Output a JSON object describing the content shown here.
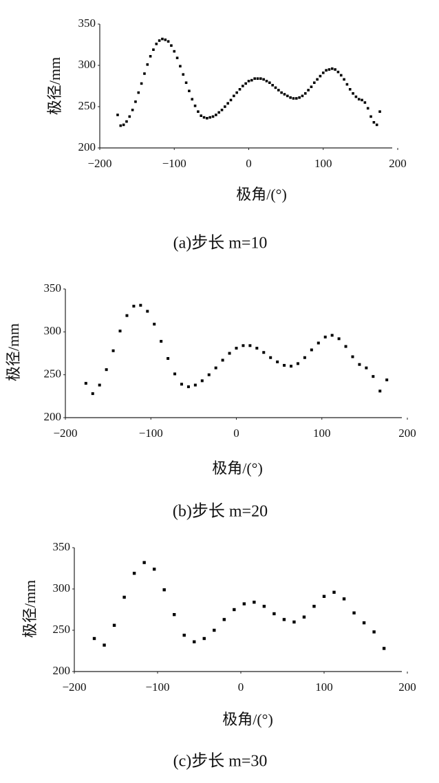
{
  "chart_data": [
    {
      "type": "scatter",
      "title": "(a)步长 m=10",
      "xlabel": "极角/(°)",
      "ylabel": "极径/mm",
      "color": "#000000",
      "xlim": [
        -200,
        200
      ],
      "ylim": [
        200,
        350
      ],
      "xticks": [
        -200,
        -100,
        0,
        100,
        200
      ],
      "yticks": [
        200,
        250,
        300,
        350
      ],
      "x": [
        -176,
        -172,
        -168,
        -164,
        -160,
        -156,
        -152,
        -148,
        -144,
        -140,
        -136,
        -132,
        -128,
        -124,
        -120,
        -116,
        -112,
        -108,
        -104,
        -100,
        -96,
        -92,
        -88,
        -84,
        -80,
        -76,
        -72,
        -68,
        -64,
        -60,
        -56,
        -52,
        -48,
        -44,
        -40,
        -36,
        -32,
        -28,
        -24,
        -20,
        -16,
        -12,
        -8,
        -4,
        0,
        4,
        8,
        12,
        16,
        20,
        24,
        28,
        32,
        36,
        40,
        44,
        48,
        52,
        56,
        60,
        64,
        68,
        72,
        76,
        80,
        84,
        88,
        92,
        96,
        100,
        104,
        108,
        112,
        116,
        120,
        124,
        128,
        132,
        136,
        140,
        144,
        148,
        152,
        156,
        160,
        164,
        168,
        172,
        176
      ],
      "values": [
        240,
        227,
        228,
        232,
        238,
        246,
        256,
        267,
        278,
        290,
        301,
        311,
        319,
        326,
        330,
        332,
        331,
        329,
        324,
        317,
        309,
        299,
        289,
        279,
        269,
        259,
        251,
        244,
        239,
        237,
        236,
        237,
        238,
        240,
        243,
        246,
        250,
        254,
        258,
        263,
        267,
        271,
        275,
        278,
        281,
        282,
        284,
        284,
        284,
        283,
        281,
        279,
        276,
        273,
        270,
        267,
        265,
        263,
        261,
        260,
        260,
        261,
        263,
        266,
        270,
        274,
        279,
        283,
        287,
        291,
        294,
        295,
        296,
        295,
        292,
        288,
        283,
        277,
        271,
        266,
        262,
        259,
        258,
        255,
        248,
        238,
        231,
        228,
        244
      ]
    },
    {
      "type": "scatter",
      "title": "(b)步长 m=20",
      "xlabel": "极角/(°)",
      "ylabel": "极径/mm",
      "color": "#000000",
      "xlim": [
        -200,
        200
      ],
      "ylim": [
        200,
        350
      ],
      "xticks": [
        -200,
        -100,
        0,
        100,
        200
      ],
      "yticks": [
        200,
        250,
        300,
        350
      ],
      "x": [
        -176,
        -168,
        -160,
        -152,
        -144,
        -136,
        -128,
        -120,
        -112,
        -104,
        -96,
        -88,
        -80,
        -72,
        -64,
        -56,
        -48,
        -40,
        -32,
        -24,
        -16,
        -8,
        0,
        8,
        16,
        24,
        32,
        40,
        48,
        56,
        64,
        72,
        80,
        88,
        96,
        104,
        112,
        120,
        128,
        136,
        144,
        152,
        160,
        168,
        176
      ],
      "values": [
        240,
        228,
        238,
        256,
        278,
        301,
        319,
        330,
        331,
        324,
        309,
        289,
        269,
        251,
        239,
        236,
        238,
        243,
        250,
        258,
        267,
        275,
        281,
        284,
        284,
        281,
        276,
        270,
        265,
        261,
        260,
        263,
        270,
        279,
        287,
        294,
        296,
        292,
        283,
        271,
        262,
        258,
        248,
        231,
        244
      ]
    },
    {
      "type": "scatter",
      "title": "(c)步长 m=30",
      "xlabel": "极角/(°)",
      "ylabel": "极径/mm",
      "color": "#000000",
      "xlim": [
        -200,
        200
      ],
      "ylim": [
        200,
        350
      ],
      "xticks": [
        -200,
        -100,
        0,
        100,
        200
      ],
      "yticks": [
        200,
        250,
        300,
        350
      ],
      "x": [
        -176,
        -164,
        -152,
        -140,
        -128,
        -116,
        -104,
        -92,
        -80,
        -68,
        -56,
        -44,
        -32,
        -20,
        -8,
        4,
        16,
        28,
        40,
        52,
        64,
        76,
        88,
        100,
        112,
        124,
        136,
        148,
        160,
        172
      ],
      "values": [
        240,
        232,
        256,
        290,
        319,
        332,
        324,
        299,
        269,
        244,
        236,
        240,
        250,
        263,
        275,
        282,
        284,
        279,
        270,
        263,
        260,
        266,
        279,
        291,
        296,
        288,
        271,
        259,
        248,
        228
      ]
    }
  ]
}
